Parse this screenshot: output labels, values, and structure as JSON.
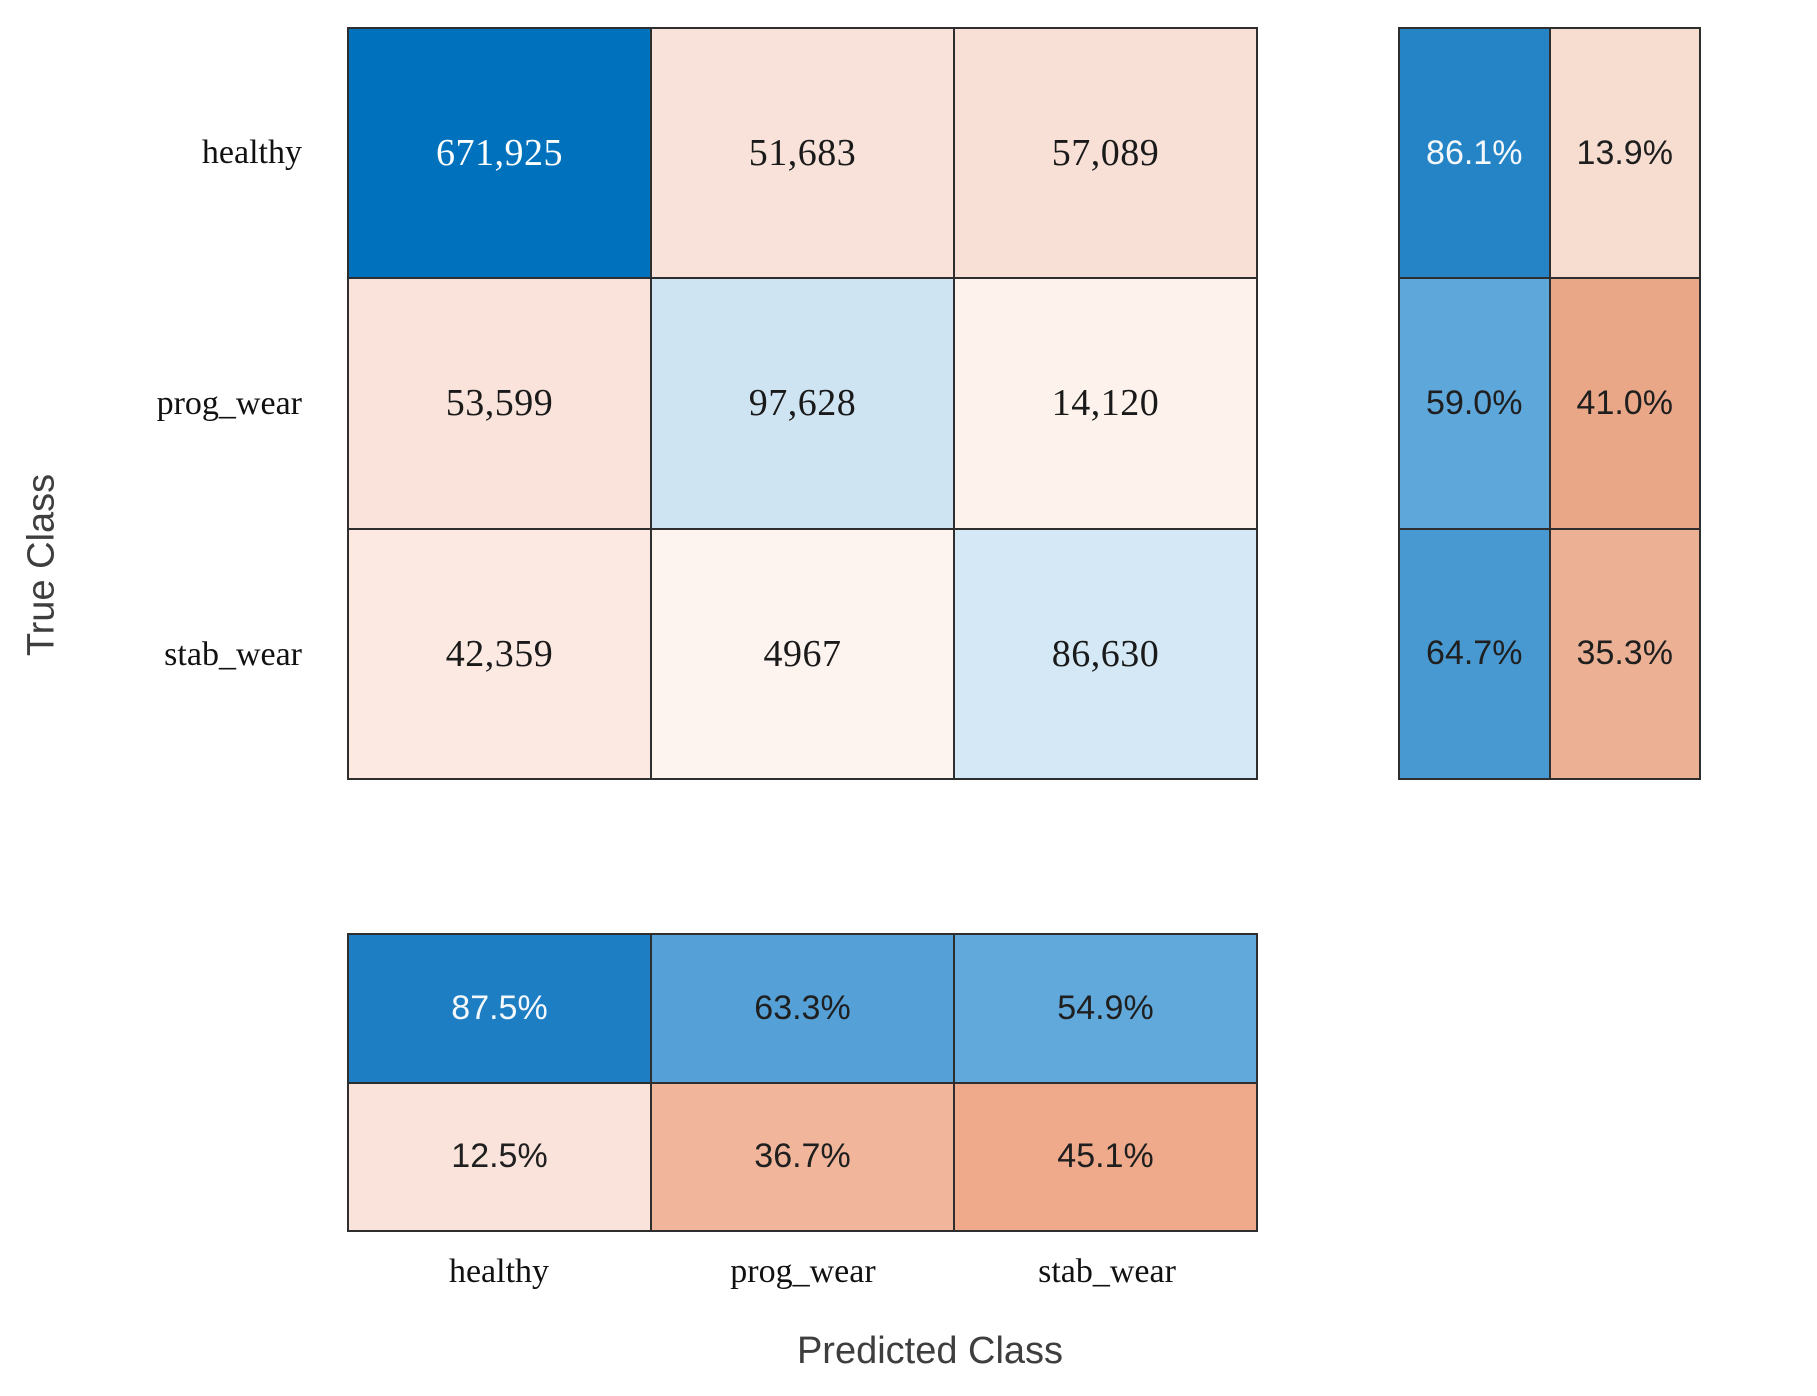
{
  "figure": {
    "y_axis_label": "True Class",
    "x_axis_label": "Predicted Class",
    "classes": [
      "healthy",
      "prog_wear",
      "stab_wear"
    ]
  },
  "chart_data": {
    "type": "heatmap",
    "subtype": "confusion-matrix",
    "title": "",
    "xlabel": "Predicted Class",
    "ylabel": "True Class",
    "true_classes": [
      "healthy",
      "prog_wear",
      "stab_wear"
    ],
    "predicted_classes": [
      "healthy",
      "prog_wear",
      "stab_wear"
    ],
    "counts": [
      [
        671925,
        51683,
        57089
      ],
      [
        53599,
        97628,
        14120
      ],
      [
        42359,
        4967,
        86630
      ]
    ],
    "count_labels": [
      [
        "671,925",
        "51,683",
        "57,089"
      ],
      [
        "53,599",
        "97,628",
        "14,120"
      ],
      [
        "42,359",
        "4967",
        "86,630"
      ]
    ],
    "row_summary_percent": [
      [
        86.1,
        13.9
      ],
      [
        59.0,
        41.0
      ],
      [
        64.7,
        35.3
      ]
    ],
    "row_summary_labels": [
      [
        "86.1%",
        "13.9%"
      ],
      [
        "59.0%",
        "41.0%"
      ],
      [
        "64.7%",
        "35.3%"
      ]
    ],
    "column_summary_percent": [
      [
        87.5,
        63.3,
        54.9
      ],
      [
        12.5,
        36.7,
        45.1
      ]
    ],
    "column_summary_labels": [
      [
        "87.5%",
        "63.3%",
        "54.9%"
      ],
      [
        "12.5%",
        "36.7%",
        "45.1%"
      ]
    ],
    "legend": "none",
    "grid": "cell-borders",
    "colormap": "blue = correct / high, salmon = incorrect / high, white = low"
  },
  "colors": {
    "grid_line": "#2e2e2e",
    "diagonal_blue": "#0072bd",
    "accent_blue_strong": "#1e7ec4",
    "accent_blue_medium": "#54a0d7",
    "accent_salmon": "#e9a788",
    "light_pink": "#f9e2d9",
    "light_blue": "#cfe4f3",
    "axis_label_gray": "#3e3e3e"
  },
  "grids": {
    "matrix": {
      "cols": 3,
      "cells": [
        {
          "text": "671,925",
          "bg": "#0072bd",
          "fg": "#ffffff"
        },
        {
          "text": "51,683",
          "bg": "#f9e2d9",
          "fg": "#1a1a1a"
        },
        {
          "text": "57,089",
          "bg": "#f8e0d7",
          "fg": "#1a1a1a"
        },
        {
          "text": "53,599",
          "bg": "#f9e3da",
          "fg": "#1a1a1a"
        },
        {
          "text": "97,628",
          "bg": "#cfe4f3",
          "fg": "#1a1a1a"
        },
        {
          "text": "14,120",
          "bg": "#fdf2ec",
          "fg": "#1a1a1a"
        },
        {
          "text": "42,359",
          "bg": "#fbe9e2",
          "fg": "#1a1a1a"
        },
        {
          "text": "4967",
          "bg": "#fdf4ef",
          "fg": "#1a1a1a"
        },
        {
          "text": "86,630",
          "bg": "#d4e8f5",
          "fg": "#1a1a1a"
        }
      ]
    },
    "row_summary": {
      "cols": 2,
      "cells": [
        {
          "text": "86.1%",
          "bg": "#2484c6",
          "fg": "#f4f8fb"
        },
        {
          "text": "13.9%",
          "bg": "#f7dcd0",
          "fg": "#1f1f1f"
        },
        {
          "text": "59.0%",
          "bg": "#5ea7da",
          "fg": "#1f1f1f"
        },
        {
          "text": "41.0%",
          "bg": "#e9a788",
          "fg": "#1f1f1f"
        },
        {
          "text": "64.7%",
          "bg": "#4899d1",
          "fg": "#1f1f1f"
        },
        {
          "text": "35.3%",
          "bg": "#ecb195",
          "fg": "#1f1f1f"
        }
      ]
    },
    "col_summary": {
      "cols": 3,
      "cells": [
        {
          "text": "87.5%",
          "bg": "#1e7ec4",
          "fg": "#f4f8fb"
        },
        {
          "text": "63.3%",
          "bg": "#54a0d7",
          "fg": "#1f1f1f"
        },
        {
          "text": "54.9%",
          "bg": "#61a9db",
          "fg": "#1f1f1f"
        },
        {
          "text": "12.5%",
          "bg": "#fae3da",
          "fg": "#1f1f1f"
        },
        {
          "text": "36.7%",
          "bg": "#f1b59c",
          "fg": "#1f1f1f"
        },
        {
          "text": "45.1%",
          "bg": "#efaa8b",
          "fg": "#1f1f1f"
        }
      ]
    }
  }
}
